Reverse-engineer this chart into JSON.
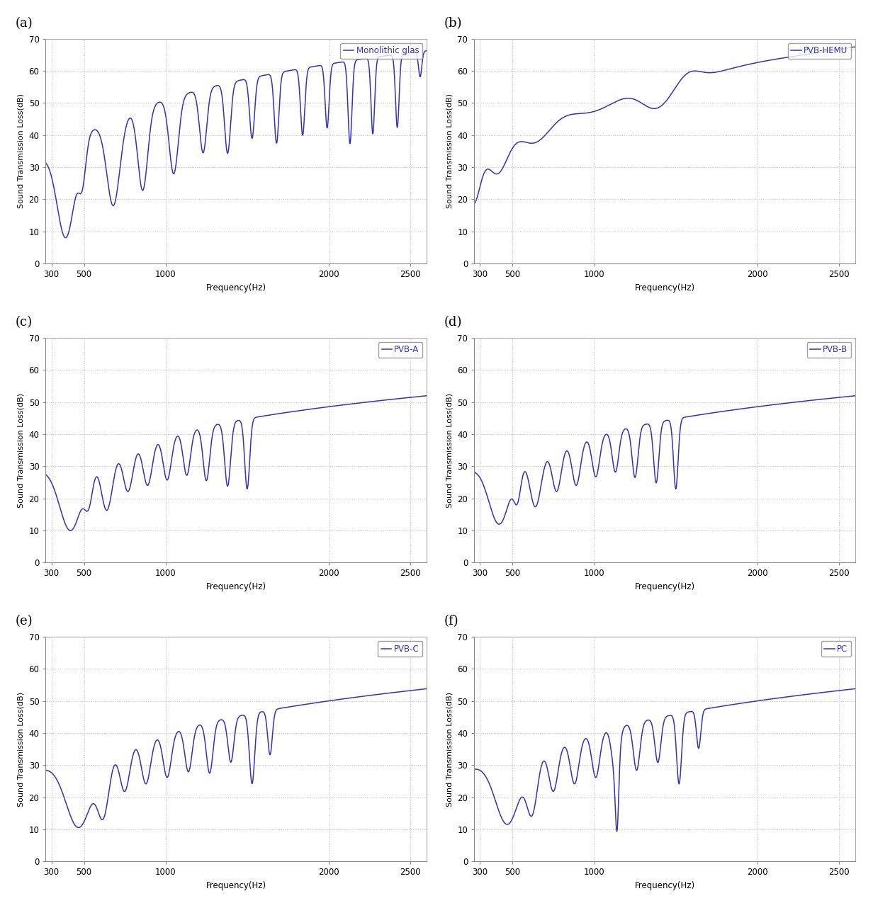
{
  "panels": [
    {
      "label": "(a)",
      "legend": "Monolithic glas",
      "type": "monolithic"
    },
    {
      "label": "(b)",
      "legend": "PVB-HEMU",
      "type": "pvb_hemu"
    },
    {
      "label": "(c)",
      "legend": "PVB-A",
      "type": "pvb_a"
    },
    {
      "label": "(d)",
      "legend": "PVB-B",
      "type": "pvb_b"
    },
    {
      "label": "(e)",
      "legend": "PVB-C",
      "type": "pvb_c"
    },
    {
      "label": "(f)",
      "legend": "PC",
      "type": "pc"
    }
  ],
  "line_color": "#3333BB",
  "background_color": "#ffffff",
  "ylabel": "Sound Transmission Loss(dB)",
  "xlabel": "Frequency(Hz)",
  "ylim": [
    0,
    70
  ],
  "yticks": [
    0,
    10,
    20,
    30,
    40,
    50,
    60,
    70
  ],
  "xlim": [
    265,
    2600
  ],
  "xticks": [
    300,
    500,
    1000,
    2000,
    2500
  ],
  "grid_color": "#bbbbbb",
  "grid_style": "dotted"
}
